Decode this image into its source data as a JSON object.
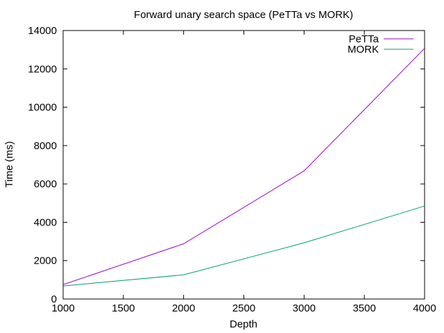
{
  "chart_data": {
    "type": "line",
    "title": "Forward unary search space (PeTTa vs MORK)",
    "xlabel": "Depth",
    "ylabel": "Time (ms)",
    "x": [
      1000,
      2000,
      3000,
      4000
    ],
    "xlim": [
      1000,
      4000
    ],
    "ylim": [
      0,
      14000
    ],
    "xticks": [
      1000,
      1500,
      2000,
      2500,
      3000,
      3500,
      4000
    ],
    "yticks": [
      0,
      2000,
      4000,
      6000,
      8000,
      10000,
      12000,
      14000
    ],
    "grid": false,
    "legend_position": "top-right",
    "series": [
      {
        "name": "PeTTa",
        "color": "#9400d3",
        "values": [
          750,
          2880,
          6680,
          13070
        ]
      },
      {
        "name": "MORK",
        "color": "#009e73",
        "values": [
          680,
          1260,
          2930,
          4850
        ]
      }
    ]
  }
}
